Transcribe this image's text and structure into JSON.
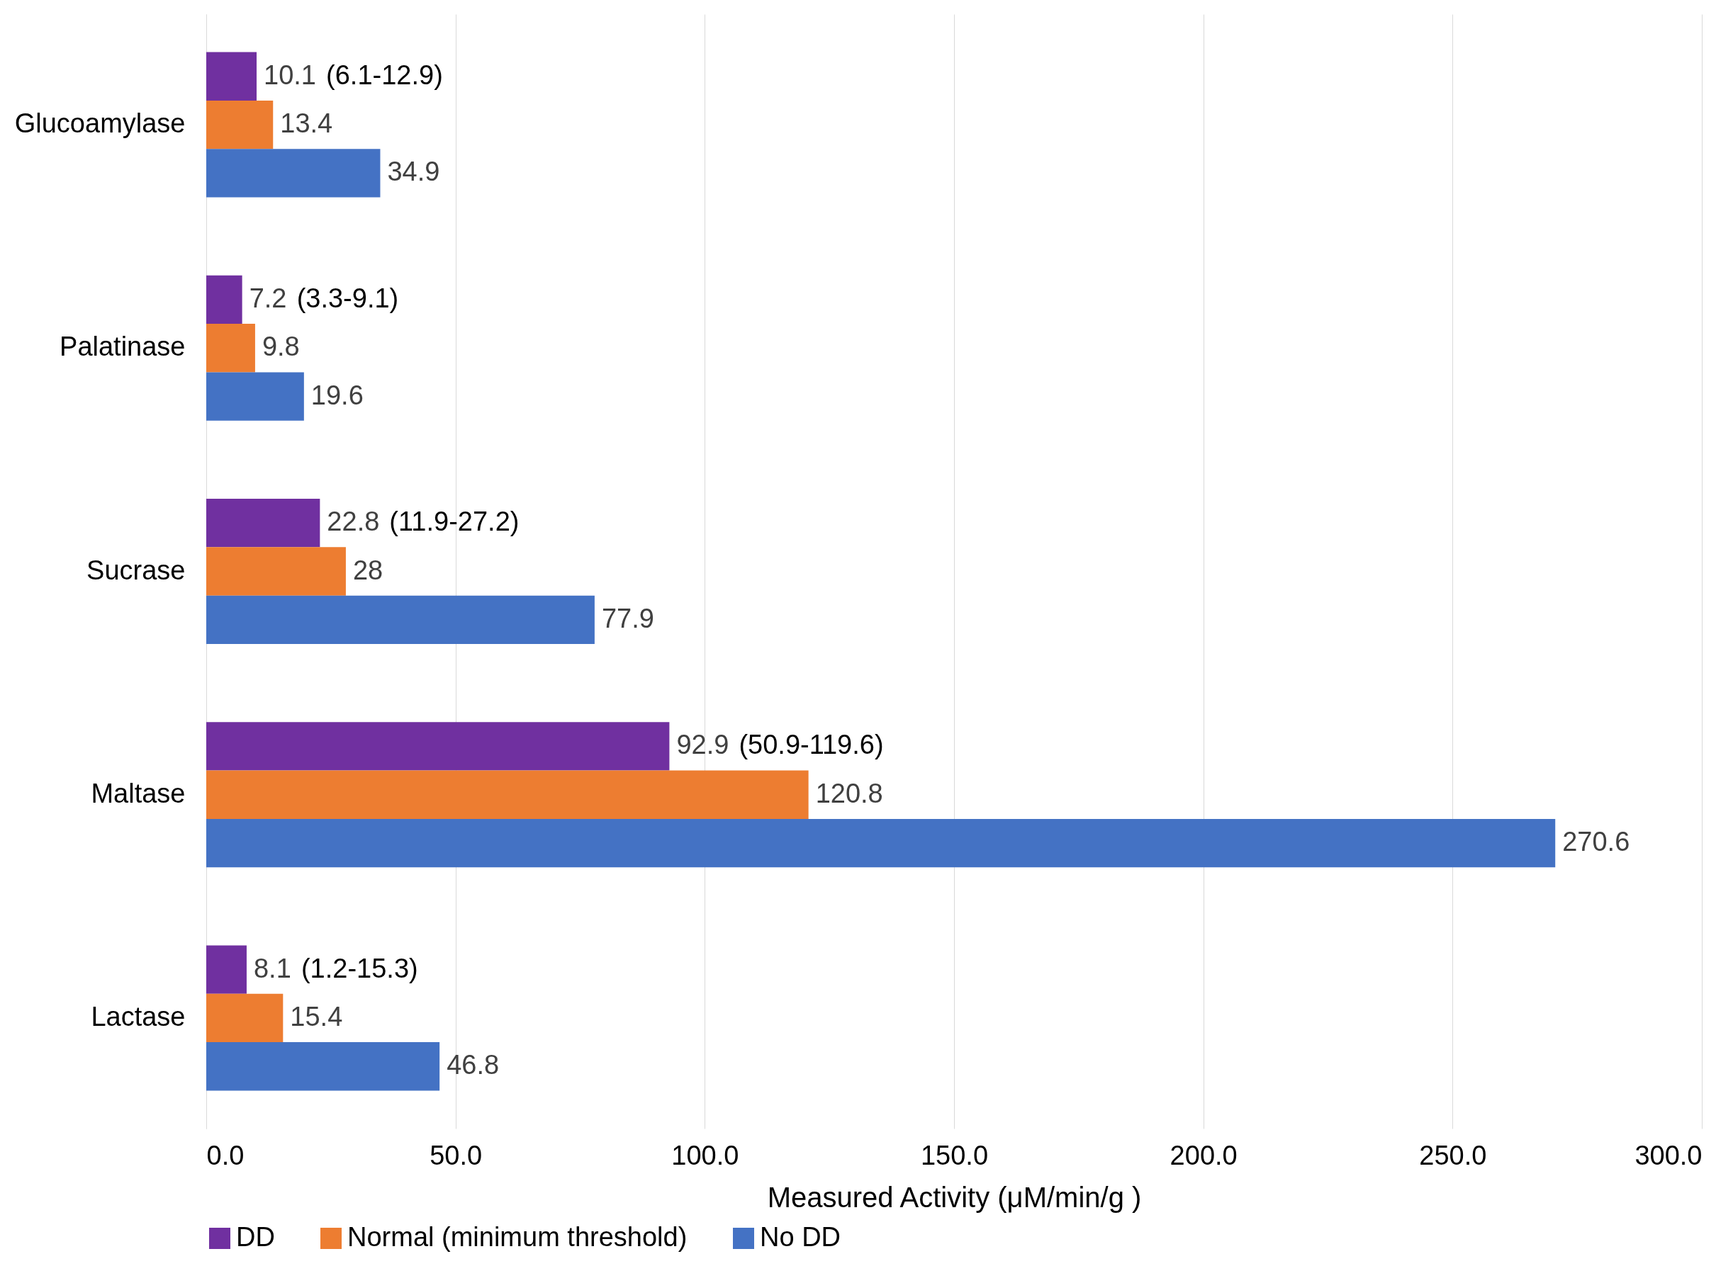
{
  "chart_data": {
    "type": "bar",
    "orientation": "horizontal",
    "categories": [
      "Glucoamylase",
      "Palatinase",
      "Sucrase",
      "Maltase",
      "Lactase"
    ],
    "series": [
      {
        "name": "DD",
        "color": "#7030a0",
        "values": [
          10.1,
          7.2,
          22.8,
          92.9,
          8.1
        ]
      },
      {
        "name": "Normal (minimum threshold)",
        "color": "#ed7d31",
        "values": [
          13.4,
          9.8,
          28,
          120.8,
          15.4
        ]
      },
      {
        "name": "No DD",
        "color": "#4472c4",
        "values": [
          34.9,
          19.6,
          77.9,
          270.6,
          46.8
        ]
      }
    ],
    "xlabel": "Measured Activity (μM/min/g )",
    "xlim": [
      0,
      300
    ],
    "xticks": [
      {
        "value": 0,
        "label": "0.0"
      },
      {
        "value": 50,
        "label": "50.0"
      },
      {
        "value": 100,
        "label": "100.0"
      },
      {
        "value": 150,
        "label": "150.0"
      },
      {
        "value": 200,
        "label": "200.0"
      },
      {
        "value": 250,
        "label": "250.0"
      },
      {
        "value": 300,
        "label": "300.0"
      }
    ],
    "grid": "x",
    "legend": "bottom",
    "data_labels": true,
    "annotations": [
      "(6.1-12.9)",
      "(3.3-9.1)",
      "(11.9-27.2)",
      "(50.9-119.6)",
      "(1.2-15.3)"
    ]
  }
}
